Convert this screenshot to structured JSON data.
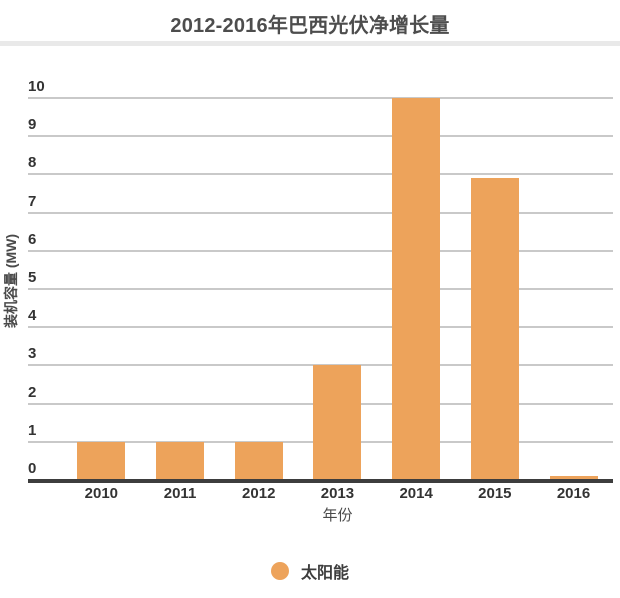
{
  "chart_data": {
    "type": "bar",
    "title": "2012-2016年巴西光伏净增长量",
    "categories": [
      "2010",
      "2011",
      "2012",
      "2013",
      "2014",
      "2015",
      "2016"
    ],
    "series": [
      {
        "name": "太阳能",
        "values": [
          1,
          1,
          1,
          3,
          10,
          7.9,
          0.1
        ]
      }
    ],
    "xlabel": "年份",
    "ylabel": "装机容量 (MW)",
    "ylim": [
      0,
      10
    ],
    "yticks": [
      0,
      1,
      2,
      3,
      4,
      5,
      6,
      7,
      8,
      9,
      10
    ],
    "grid": true,
    "legend_position": "bottom",
    "colors": {
      "bar": "#eda35b",
      "grid": "#c9c9c9",
      "axis_line": "#3d3d3d",
      "tick_text": "#333333",
      "title_text": "#4d4d4d",
      "divider": "#e9e9e9"
    }
  }
}
